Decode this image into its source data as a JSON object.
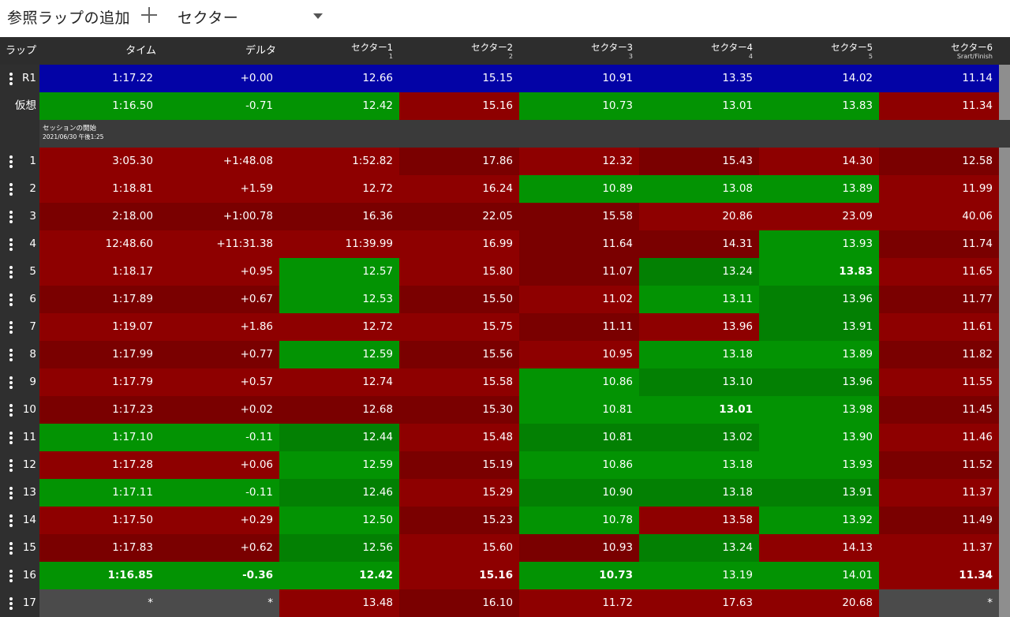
{
  "toolbar": {
    "add_reference_label": "参照ラップの追加",
    "plus_icon": "plus-icon",
    "selector_value": "セクター",
    "selector_icon": "dropdown-arrow-icon"
  },
  "colors": {
    "green": "#039303",
    "dark_green": "#038003",
    "red": "#8e0000",
    "dark_red": "#7a0000",
    "blue": "#0303a6",
    "gray": "#4b4b4b",
    "header": "#2d2d2d",
    "session": "#3a3a3a"
  },
  "header": {
    "lap": "ラップ",
    "time": "タイム",
    "delta": "デルタ",
    "sectors": [
      {
        "name": "セクター1",
        "sub": "1"
      },
      {
        "name": "セクター2",
        "sub": "2"
      },
      {
        "name": "セクター3",
        "sub": "3"
      },
      {
        "name": "セクター4",
        "sub": "4"
      },
      {
        "name": "セクター5",
        "sub": "5"
      },
      {
        "name": "セクター6",
        "sub": "Srart/Finish"
      }
    ]
  },
  "session": {
    "title": "セッションの開始",
    "date": "2021/06/30 午後1:25"
  },
  "rows": [
    {
      "lap": "R1",
      "menu": true,
      "bold": [],
      "vals": [
        "1:17.22",
        "+0.00",
        "12.66",
        "15.15",
        "10.91",
        "13.35",
        "14.02",
        "11.14"
      ],
      "bg": [
        "B",
        "B",
        "B",
        "B",
        "B",
        "B",
        "B",
        "B"
      ]
    },
    {
      "lap": "仮想",
      "menu": false,
      "bold": [],
      "vals": [
        "1:16.50",
        "-0.71",
        "12.42",
        "15.16",
        "10.73",
        "13.01",
        "13.83",
        "11.34"
      ],
      "bg": [
        "G",
        "G",
        "G",
        "R",
        "G",
        "G",
        "G",
        "R"
      ]
    },
    {
      "session": true
    },
    {
      "lap": "1",
      "menu": true,
      "bold": [],
      "vals": [
        "3:05.30",
        "+1:48.08",
        "1:52.82",
        "17.86",
        "12.32",
        "15.43",
        "14.30",
        "12.58"
      ],
      "bg": [
        "R",
        "R",
        "R",
        "r",
        "R",
        "r",
        "R",
        "r"
      ]
    },
    {
      "lap": "2",
      "menu": true,
      "bold": [],
      "vals": [
        "1:18.81",
        "+1.59",
        "12.72",
        "16.24",
        "10.89",
        "13.08",
        "13.89",
        "11.99"
      ],
      "bg": [
        "R",
        "R",
        "R",
        "R",
        "G",
        "G",
        "G",
        "R"
      ]
    },
    {
      "lap": "3",
      "menu": true,
      "bold": [],
      "vals": [
        "2:18.00",
        "+1:00.78",
        "16.36",
        "22.05",
        "15.58",
        "20.86",
        "23.09",
        "40.06"
      ],
      "bg": [
        "r",
        "r",
        "r",
        "r",
        "r",
        "R",
        "R",
        "R"
      ]
    },
    {
      "lap": "4",
      "menu": true,
      "bold": [],
      "vals": [
        "12:48.60",
        "+11:31.38",
        "11:39.99",
        "16.99",
        "11.64",
        "14.31",
        "13.93",
        "11.74"
      ],
      "bg": [
        "R",
        "R",
        "R",
        "R",
        "r",
        "r",
        "G",
        "r"
      ]
    },
    {
      "lap": "5",
      "menu": true,
      "bold": [
        6
      ],
      "vals": [
        "1:18.17",
        "+0.95",
        "12.57",
        "15.80",
        "11.07",
        "13.24",
        "13.83",
        "11.65"
      ],
      "bg": [
        "R",
        "R",
        "G",
        "R",
        "r",
        "g",
        "G",
        "R"
      ]
    },
    {
      "lap": "6",
      "menu": true,
      "bold": [],
      "vals": [
        "1:17.89",
        "+0.67",
        "12.53",
        "15.50",
        "11.02",
        "13.11",
        "13.96",
        "11.77"
      ],
      "bg": [
        "r",
        "r",
        "G",
        "r",
        "R",
        "G",
        "g",
        "r"
      ]
    },
    {
      "lap": "7",
      "menu": true,
      "bold": [],
      "vals": [
        "1:19.07",
        "+1.86",
        "12.72",
        "15.75",
        "11.11",
        "13.96",
        "13.91",
        "11.61"
      ],
      "bg": [
        "R",
        "R",
        "R",
        "R",
        "r",
        "R",
        "g",
        "R"
      ]
    },
    {
      "lap": "8",
      "menu": true,
      "bold": [],
      "vals": [
        "1:17.99",
        "+0.77",
        "12.59",
        "15.56",
        "10.95",
        "13.18",
        "13.89",
        "11.82"
      ],
      "bg": [
        "r",
        "r",
        "G",
        "r",
        "R",
        "G",
        "G",
        "r"
      ]
    },
    {
      "lap": "9",
      "menu": true,
      "bold": [],
      "vals": [
        "1:17.79",
        "+0.57",
        "12.74",
        "15.58",
        "10.86",
        "13.10",
        "13.96",
        "11.55"
      ],
      "bg": [
        "R",
        "R",
        "R",
        "R",
        "G",
        "g",
        "g",
        "R"
      ]
    },
    {
      "lap": "10",
      "menu": true,
      "bold": [
        5
      ],
      "vals": [
        "1:17.23",
        "+0.02",
        "12.68",
        "15.30",
        "10.81",
        "13.01",
        "13.98",
        "11.45"
      ],
      "bg": [
        "r",
        "r",
        "r",
        "r",
        "G",
        "G",
        "G",
        "r"
      ]
    },
    {
      "lap": "11",
      "menu": true,
      "bold": [],
      "vals": [
        "1:17.10",
        "-0.11",
        "12.44",
        "15.48",
        "10.81",
        "13.02",
        "13.90",
        "11.46"
      ],
      "bg": [
        "G",
        "G",
        "g",
        "R",
        "g",
        "g",
        "G",
        "R"
      ]
    },
    {
      "lap": "12",
      "menu": true,
      "bold": [],
      "vals": [
        "1:17.28",
        "+0.06",
        "12.59",
        "15.19",
        "10.86",
        "13.18",
        "13.93",
        "11.52"
      ],
      "bg": [
        "R",
        "R",
        "G",
        "r",
        "G",
        "G",
        "G",
        "r"
      ]
    },
    {
      "lap": "13",
      "menu": true,
      "bold": [],
      "vals": [
        "1:17.11",
        "-0.11",
        "12.46",
        "15.29",
        "10.90",
        "13.18",
        "13.91",
        "11.37"
      ],
      "bg": [
        "G",
        "G",
        "g",
        "R",
        "g",
        "g",
        "g",
        "R"
      ]
    },
    {
      "lap": "14",
      "menu": true,
      "bold": [],
      "vals": [
        "1:17.50",
        "+0.29",
        "12.50",
        "15.23",
        "10.78",
        "13.58",
        "13.92",
        "11.49"
      ],
      "bg": [
        "R",
        "R",
        "G",
        "r",
        "G",
        "R",
        "G",
        "r"
      ]
    },
    {
      "lap": "15",
      "menu": true,
      "bold": [],
      "vals": [
        "1:17.83",
        "+0.62",
        "12.56",
        "15.60",
        "10.93",
        "13.24",
        "14.13",
        "11.37"
      ],
      "bg": [
        "r",
        "r",
        "g",
        "R",
        "r",
        "g",
        "R",
        "R"
      ]
    },
    {
      "lap": "16",
      "menu": true,
      "bold": [
        0,
        1,
        2,
        3,
        4,
        7
      ],
      "vals": [
        "1:16.85",
        "-0.36",
        "12.42",
        "15.16",
        "10.73",
        "13.19",
        "14.01",
        "11.34"
      ],
      "bg": [
        "G",
        "G",
        "G",
        "R",
        "G",
        "G",
        "G",
        "R"
      ]
    },
    {
      "lap": "17",
      "menu": true,
      "bold": [],
      "vals": [
        "*",
        "*",
        "13.48",
        "16.10",
        "11.72",
        "17.63",
        "20.68",
        "*"
      ],
      "bg": [
        "X",
        "X",
        "R",
        "r",
        "R",
        "R",
        "R",
        "X"
      ]
    }
  ]
}
